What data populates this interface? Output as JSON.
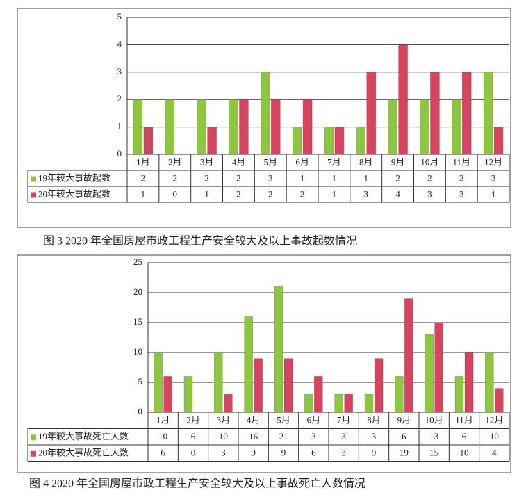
{
  "chart_data": [
    {
      "type": "bar",
      "title": "图 3 2020 年全国房屋市政工程生产安全较大及以上事故起数情况",
      "categories": [
        "1月",
        "2月",
        "3月",
        "4月",
        "5月",
        "6月",
        "7月",
        "8月",
        "9月",
        "10月",
        "11月",
        "12月"
      ],
      "series": [
        {
          "name": "19年较大事故起数",
          "color": "#8dc63f",
          "values": [
            2,
            2,
            2,
            2,
            3,
            1,
            1,
            1,
            2,
            2,
            2,
            3
          ]
        },
        {
          "name": "20年较大事故起数",
          "color": "#d8435f",
          "values": [
            1,
            0,
            1,
            2,
            2,
            2,
            1,
            3,
            4,
            3,
            3,
            1
          ]
        }
      ],
      "ylim": [
        0,
        5
      ],
      "yticks": [
        0,
        1,
        2,
        3,
        4,
        5
      ],
      "grid": true
    },
    {
      "type": "bar",
      "title": "图 4 2020 年全国房屋市政工程生产安全较大及以上事故死亡人数情况",
      "categories": [
        "1月",
        "2月",
        "3月",
        "4月",
        "5月",
        "6月",
        "7月",
        "8月",
        "9月",
        "10月",
        "11月",
        "12月"
      ],
      "series": [
        {
          "name": "19年较大事故死亡人数",
          "color": "#8dc63f",
          "values": [
            10,
            6,
            10,
            16,
            21,
            3,
            3,
            3,
            6,
            13,
            6,
            10
          ]
        },
        {
          "name": "20年较大事故死亡人数",
          "color": "#d8435f",
          "values": [
            6,
            0,
            3,
            9,
            9,
            6,
            3,
            9,
            19,
            15,
            10,
            4
          ]
        }
      ],
      "ylim": [
        0,
        25
      ],
      "yticks": [
        0,
        5,
        10,
        15,
        20,
        25
      ],
      "grid": true
    }
  ]
}
